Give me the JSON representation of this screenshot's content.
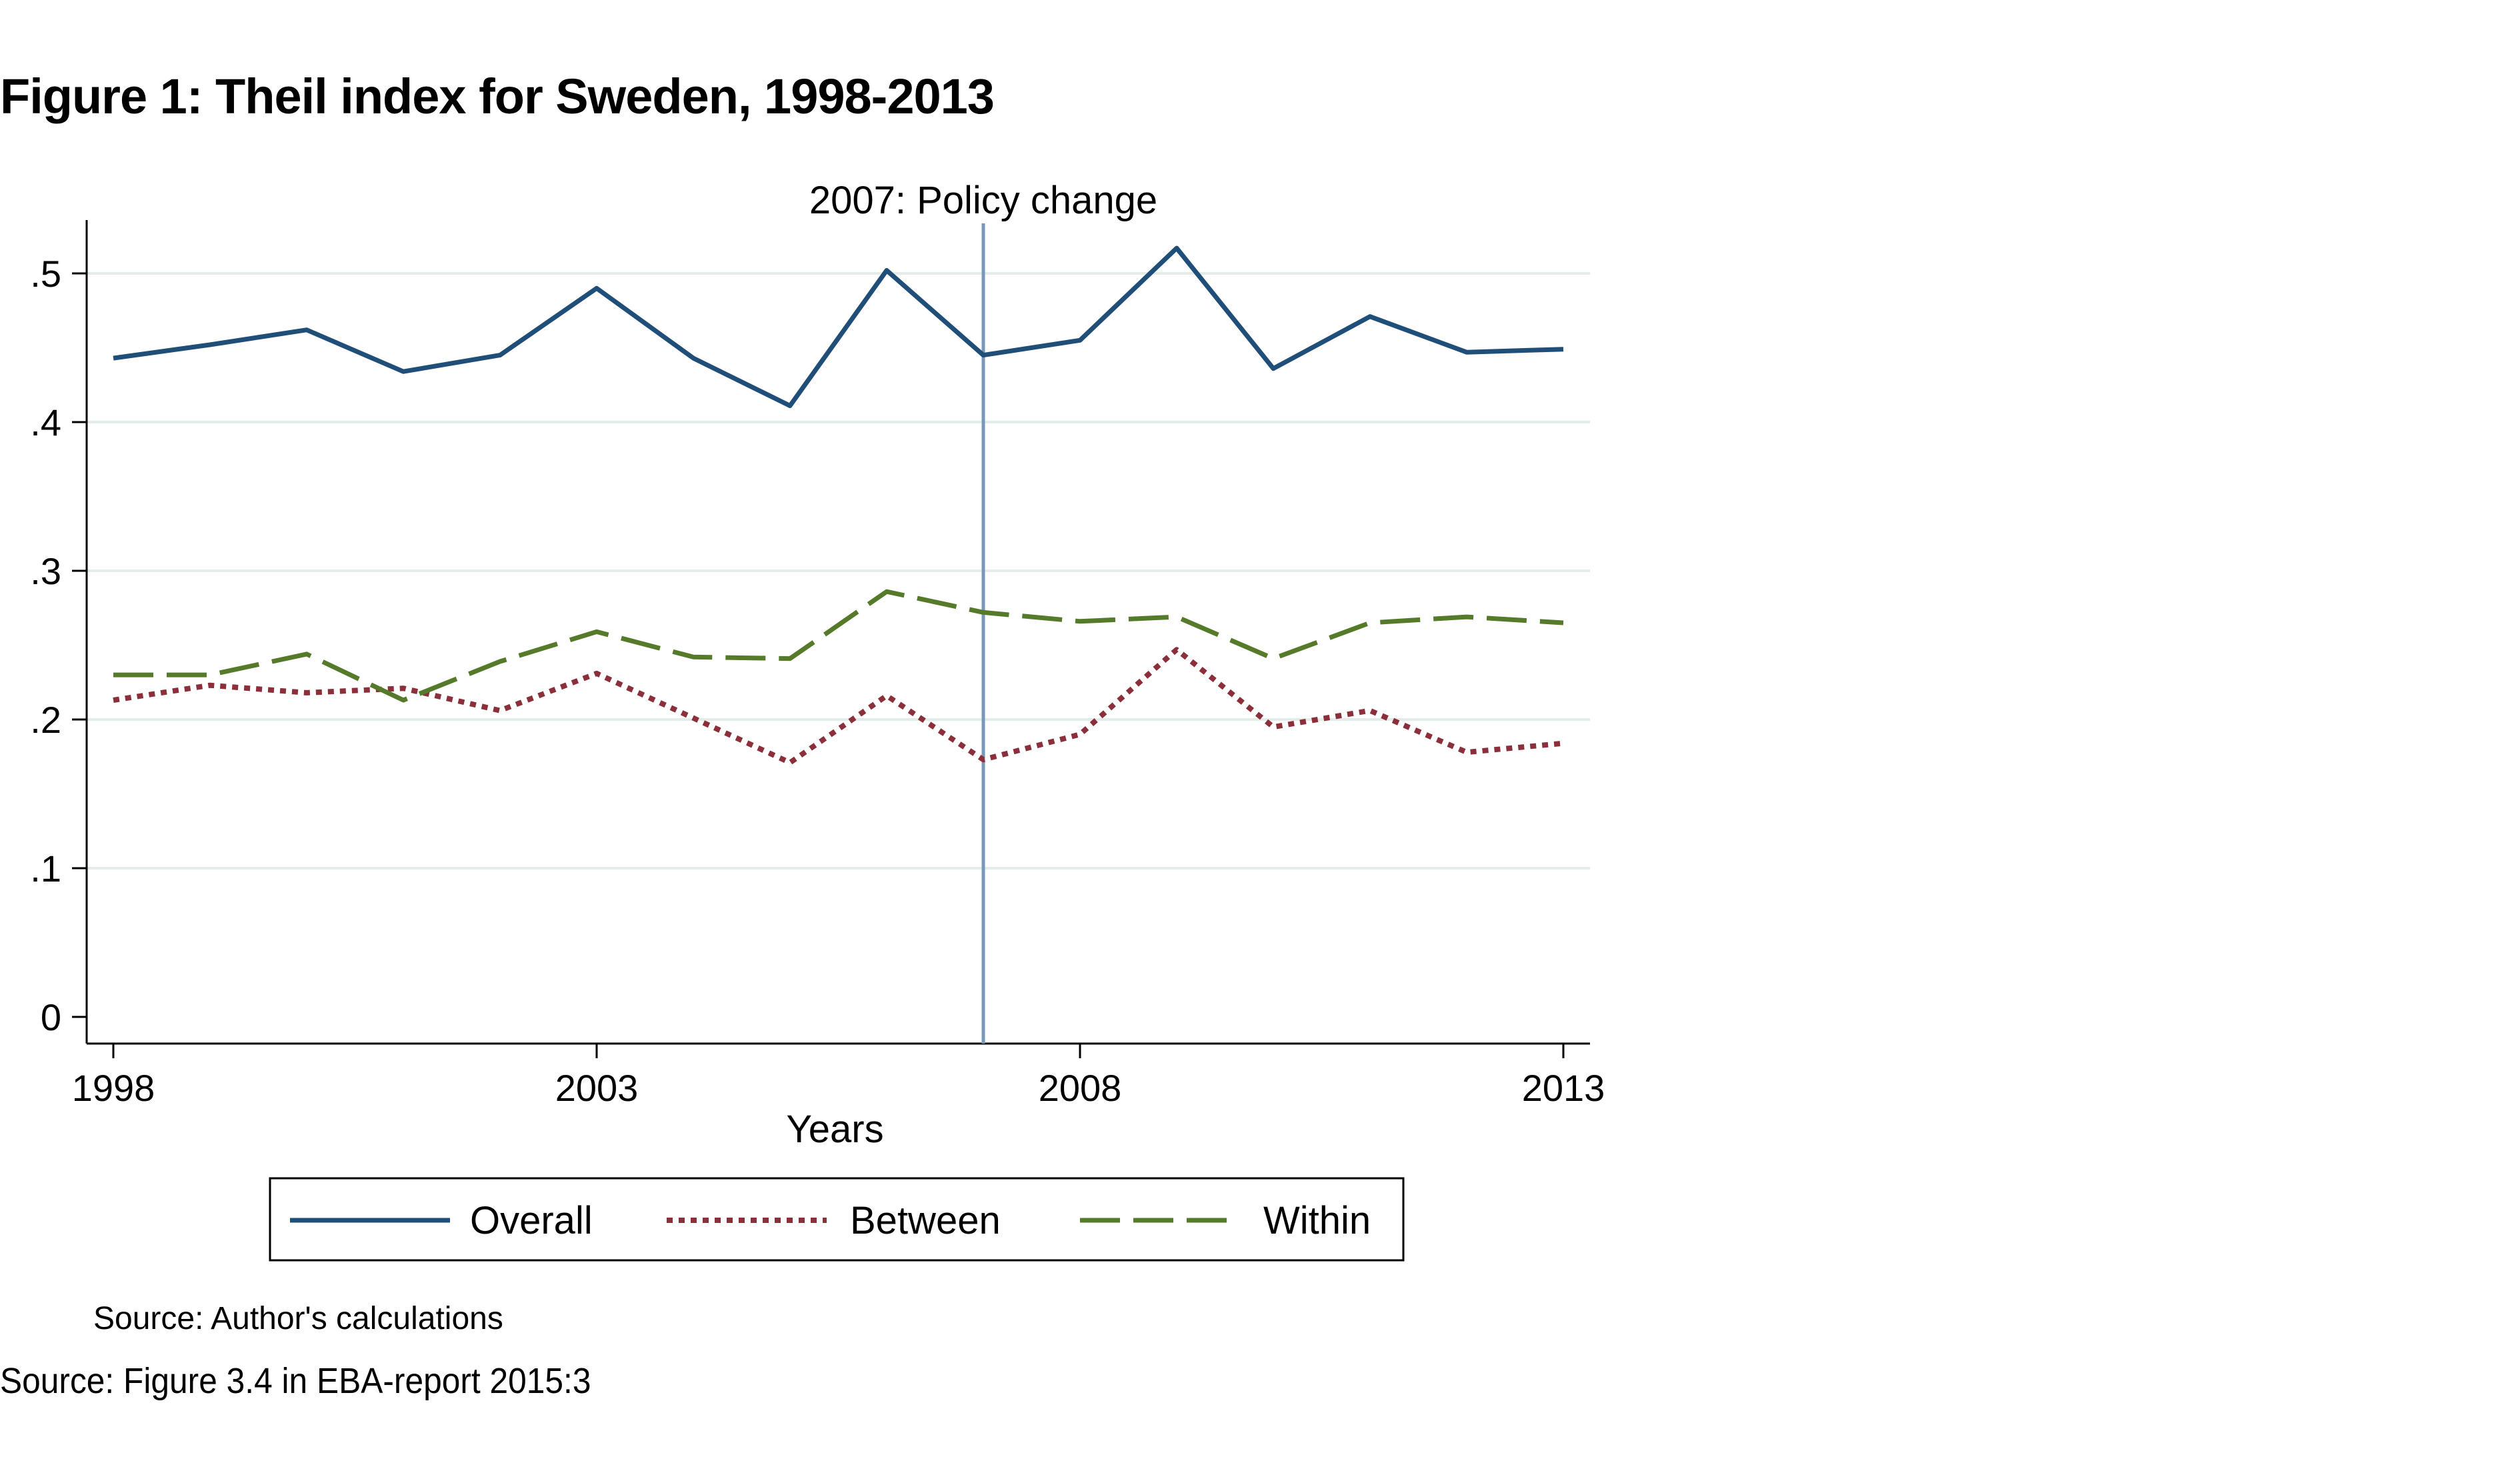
{
  "figure_title": "Figure 1: Theil index for Sweden, 1998-2013",
  "note": "Source: Author's calculations",
  "source": "Source: Figure 3.4 in EBA-report 2015:3",
  "colors": {
    "overall": "#1f4e79",
    "between": "#8b2f3a",
    "within": "#557a2a",
    "grid": "#e3ece9",
    "refline": "#7a97b5"
  },
  "chart_data": {
    "type": "line",
    "xlabel": "Years",
    "ylabel": "",
    "xlim": [
      1998,
      2013
    ],
    "ylim": [
      0,
      0.5
    ],
    "x_ticks": [
      "1998",
      "2003",
      "2008",
      "2013"
    ],
    "y_ticks": [
      ".5",
      ".4",
      ".3",
      ".2",
      ".1",
      "0"
    ],
    "grid": true,
    "legend_position": "bottom",
    "annotation": {
      "x": 2007,
      "label": "2007: Policy change"
    },
    "x": [
      1998,
      1999,
      2000,
      2001,
      2002,
      2003,
      2004,
      2005,
      2006,
      2007,
      2008,
      2009,
      2010,
      2011,
      2012,
      2013
    ],
    "series": [
      {
        "name": "Overall",
        "style": "solid",
        "values": [
          0.443,
          0.452,
          0.462,
          0.434,
          0.445,
          0.49,
          0.443,
          0.411,
          0.502,
          0.445,
          0.455,
          0.517,
          0.436,
          0.471,
          0.447,
          0.449
        ]
      },
      {
        "name": "Between",
        "style": "dotted",
        "values": [
          0.213,
          0.223,
          0.218,
          0.221,
          0.206,
          0.231,
          0.201,
          0.171,
          0.216,
          0.173,
          0.19,
          0.247,
          0.195,
          0.206,
          0.178,
          0.184
        ]
      },
      {
        "name": "Within",
        "style": "dashed",
        "values": [
          0.23,
          0.23,
          0.244,
          0.213,
          0.239,
          0.259,
          0.242,
          0.241,
          0.286,
          0.272,
          0.266,
          0.269,
          0.241,
          0.265,
          0.269,
          0.265
        ]
      }
    ]
  }
}
